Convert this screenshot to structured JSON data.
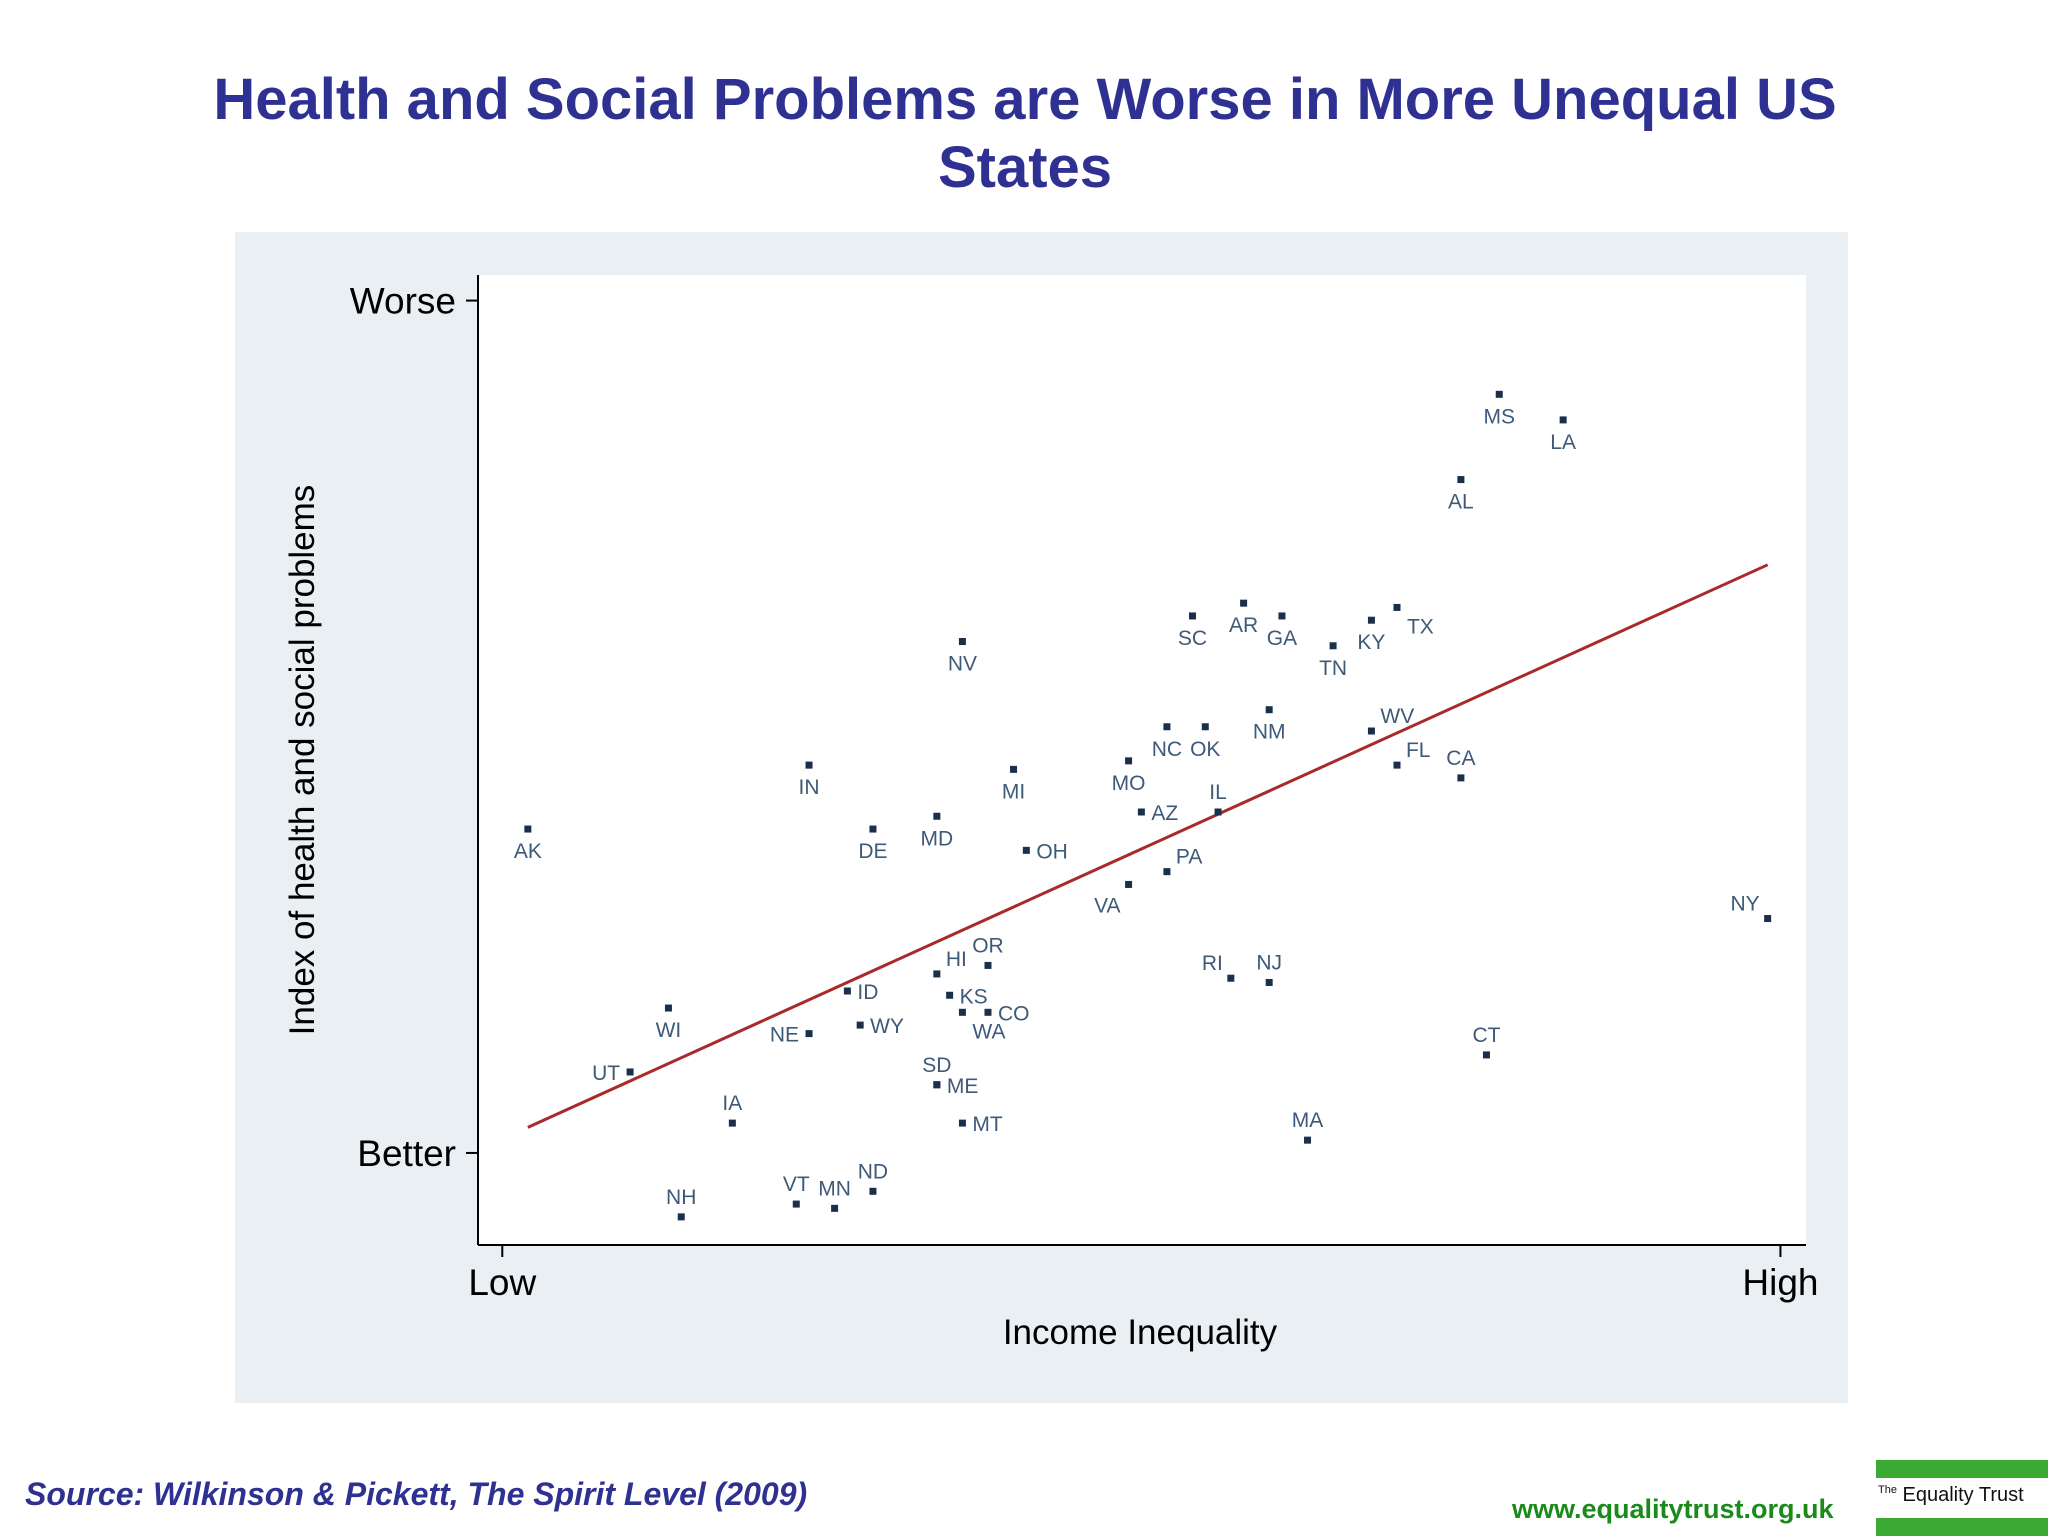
{
  "slide": {
    "title": "Health and Social Problems are Worse in More Unequal US States",
    "source": "Source: Wilkinson & Pickett, The Spirit Level (2009)",
    "website": "www.equalitytrust.org.uk",
    "logo_text_small": "The",
    "logo_text_main": "Equality Trust"
  },
  "colors": {
    "title": "#2e3192",
    "outer_panel": "#e9eff2",
    "plot_bg": "#ffffff",
    "point": "#1a2f4a",
    "point_label": "#3d5a78",
    "fit_line": "#a82a2a",
    "logo_green": "#3aaa35",
    "website": "#1a8a1a"
  },
  "chart_data": {
    "type": "scatter",
    "xlabel": "Income Inequality",
    "ylabel": "Index of health and social problems",
    "x_ticks": [
      {
        "value": 0,
        "label": "Low"
      },
      {
        "value": 100,
        "label": "High"
      }
    ],
    "y_ticks": [
      {
        "value": 0,
        "label": "Better"
      },
      {
        "value": 100,
        "label": "Worse"
      }
    ],
    "xlim": [
      -1.9,
      102
    ],
    "ylim": [
      -10.8,
      103
    ],
    "fit_line": {
      "x": [
        2,
        99
      ],
      "y": [
        3,
        69
      ]
    },
    "points": [
      {
        "label": "MS",
        "x": 78,
        "y": 89,
        "pos": "below"
      },
      {
        "label": "LA",
        "x": 83,
        "y": 86,
        "pos": "below"
      },
      {
        "label": "AL",
        "x": 75,
        "y": 79,
        "pos": "below"
      },
      {
        "label": "TX",
        "x": 70,
        "y": 64,
        "pos": "right-below"
      },
      {
        "label": "KY",
        "x": 68,
        "y": 62.5,
        "pos": "below"
      },
      {
        "label": "TN",
        "x": 65,
        "y": 59.5,
        "pos": "below"
      },
      {
        "label": "GA",
        "x": 61,
        "y": 63,
        "pos": "below"
      },
      {
        "label": "AR",
        "x": 58,
        "y": 64.5,
        "pos": "below"
      },
      {
        "label": "SC",
        "x": 54,
        "y": 63,
        "pos": "below"
      },
      {
        "label": "NV",
        "x": 36,
        "y": 60,
        "pos": "below"
      },
      {
        "label": "NM",
        "x": 60,
        "y": 52,
        "pos": "below"
      },
      {
        "label": "WV",
        "x": 68,
        "y": 49.5,
        "pos": "right-above"
      },
      {
        "label": "NC",
        "x": 52,
        "y": 50,
        "pos": "below"
      },
      {
        "label": "OK",
        "x": 55,
        "y": 50,
        "pos": "below"
      },
      {
        "label": "FL",
        "x": 70,
        "y": 45.5,
        "pos": "right-above"
      },
      {
        "label": "CA",
        "x": 75,
        "y": 44,
        "pos": "above"
      },
      {
        "label": "MO",
        "x": 49,
        "y": 46,
        "pos": "below"
      },
      {
        "label": "IL",
        "x": 56,
        "y": 40,
        "pos": "above"
      },
      {
        "label": "AZ",
        "x": 50,
        "y": 40,
        "pos": "right"
      },
      {
        "label": "MI",
        "x": 40,
        "y": 45,
        "pos": "below"
      },
      {
        "label": "IN",
        "x": 24,
        "y": 45.5,
        "pos": "below"
      },
      {
        "label": "MD",
        "x": 34,
        "y": 39.5,
        "pos": "below"
      },
      {
        "label": "DE",
        "x": 29,
        "y": 38,
        "pos": "below"
      },
      {
        "label": "OH",
        "x": 41,
        "y": 35.5,
        "pos": "right"
      },
      {
        "label": "PA",
        "x": 52,
        "y": 33,
        "pos": "right-above"
      },
      {
        "label": "VA",
        "x": 49,
        "y": 31.5,
        "pos": "left-below"
      },
      {
        "label": "AK",
        "x": 2,
        "y": 38,
        "pos": "below"
      },
      {
        "label": "NY",
        "x": 99,
        "y": 27.5,
        "pos": "left-above"
      },
      {
        "label": "RI",
        "x": 57,
        "y": 20.5,
        "pos": "left-above"
      },
      {
        "label": "NJ",
        "x": 60,
        "y": 20,
        "pos": "above"
      },
      {
        "label": "OR",
        "x": 38,
        "y": 22,
        "pos": "above"
      },
      {
        "label": "HI",
        "x": 34,
        "y": 21,
        "pos": "right-above"
      },
      {
        "label": "KS",
        "x": 35,
        "y": 18.5,
        "pos": "right"
      },
      {
        "label": "CO",
        "x": 38,
        "y": 16.5,
        "pos": "right"
      },
      {
        "label": "WA",
        "x": 36,
        "y": 16.5,
        "pos": "right-below"
      },
      {
        "label": "ID",
        "x": 27,
        "y": 19,
        "pos": "right"
      },
      {
        "label": "WY",
        "x": 28,
        "y": 15,
        "pos": "right"
      },
      {
        "label": "NE",
        "x": 24,
        "y": 14,
        "pos": "left"
      },
      {
        "label": "WI",
        "x": 13,
        "y": 17,
        "pos": "below"
      },
      {
        "label": "UT",
        "x": 10,
        "y": 9.5,
        "pos": "left"
      },
      {
        "label": "SD",
        "x": 34,
        "y": 8,
        "pos": "above"
      },
      {
        "label": "ME",
        "x": 34,
        "y": 8,
        "pos": "right"
      },
      {
        "label": "IA",
        "x": 18,
        "y": 3.5,
        "pos": "above"
      },
      {
        "label": "MT",
        "x": 36,
        "y": 3.5,
        "pos": "right"
      },
      {
        "label": "MA",
        "x": 63,
        "y": 1.5,
        "pos": "above"
      },
      {
        "label": "CT",
        "x": 77,
        "y": 11.5,
        "pos": "above"
      },
      {
        "label": "ND",
        "x": 29,
        "y": -4.5,
        "pos": "above"
      },
      {
        "label": "MN",
        "x": 26,
        "y": -6.5,
        "pos": "above"
      },
      {
        "label": "VT",
        "x": 23,
        "y": -6,
        "pos": "above"
      },
      {
        "label": "NH",
        "x": 14,
        "y": -7.5,
        "pos": "above"
      }
    ]
  }
}
